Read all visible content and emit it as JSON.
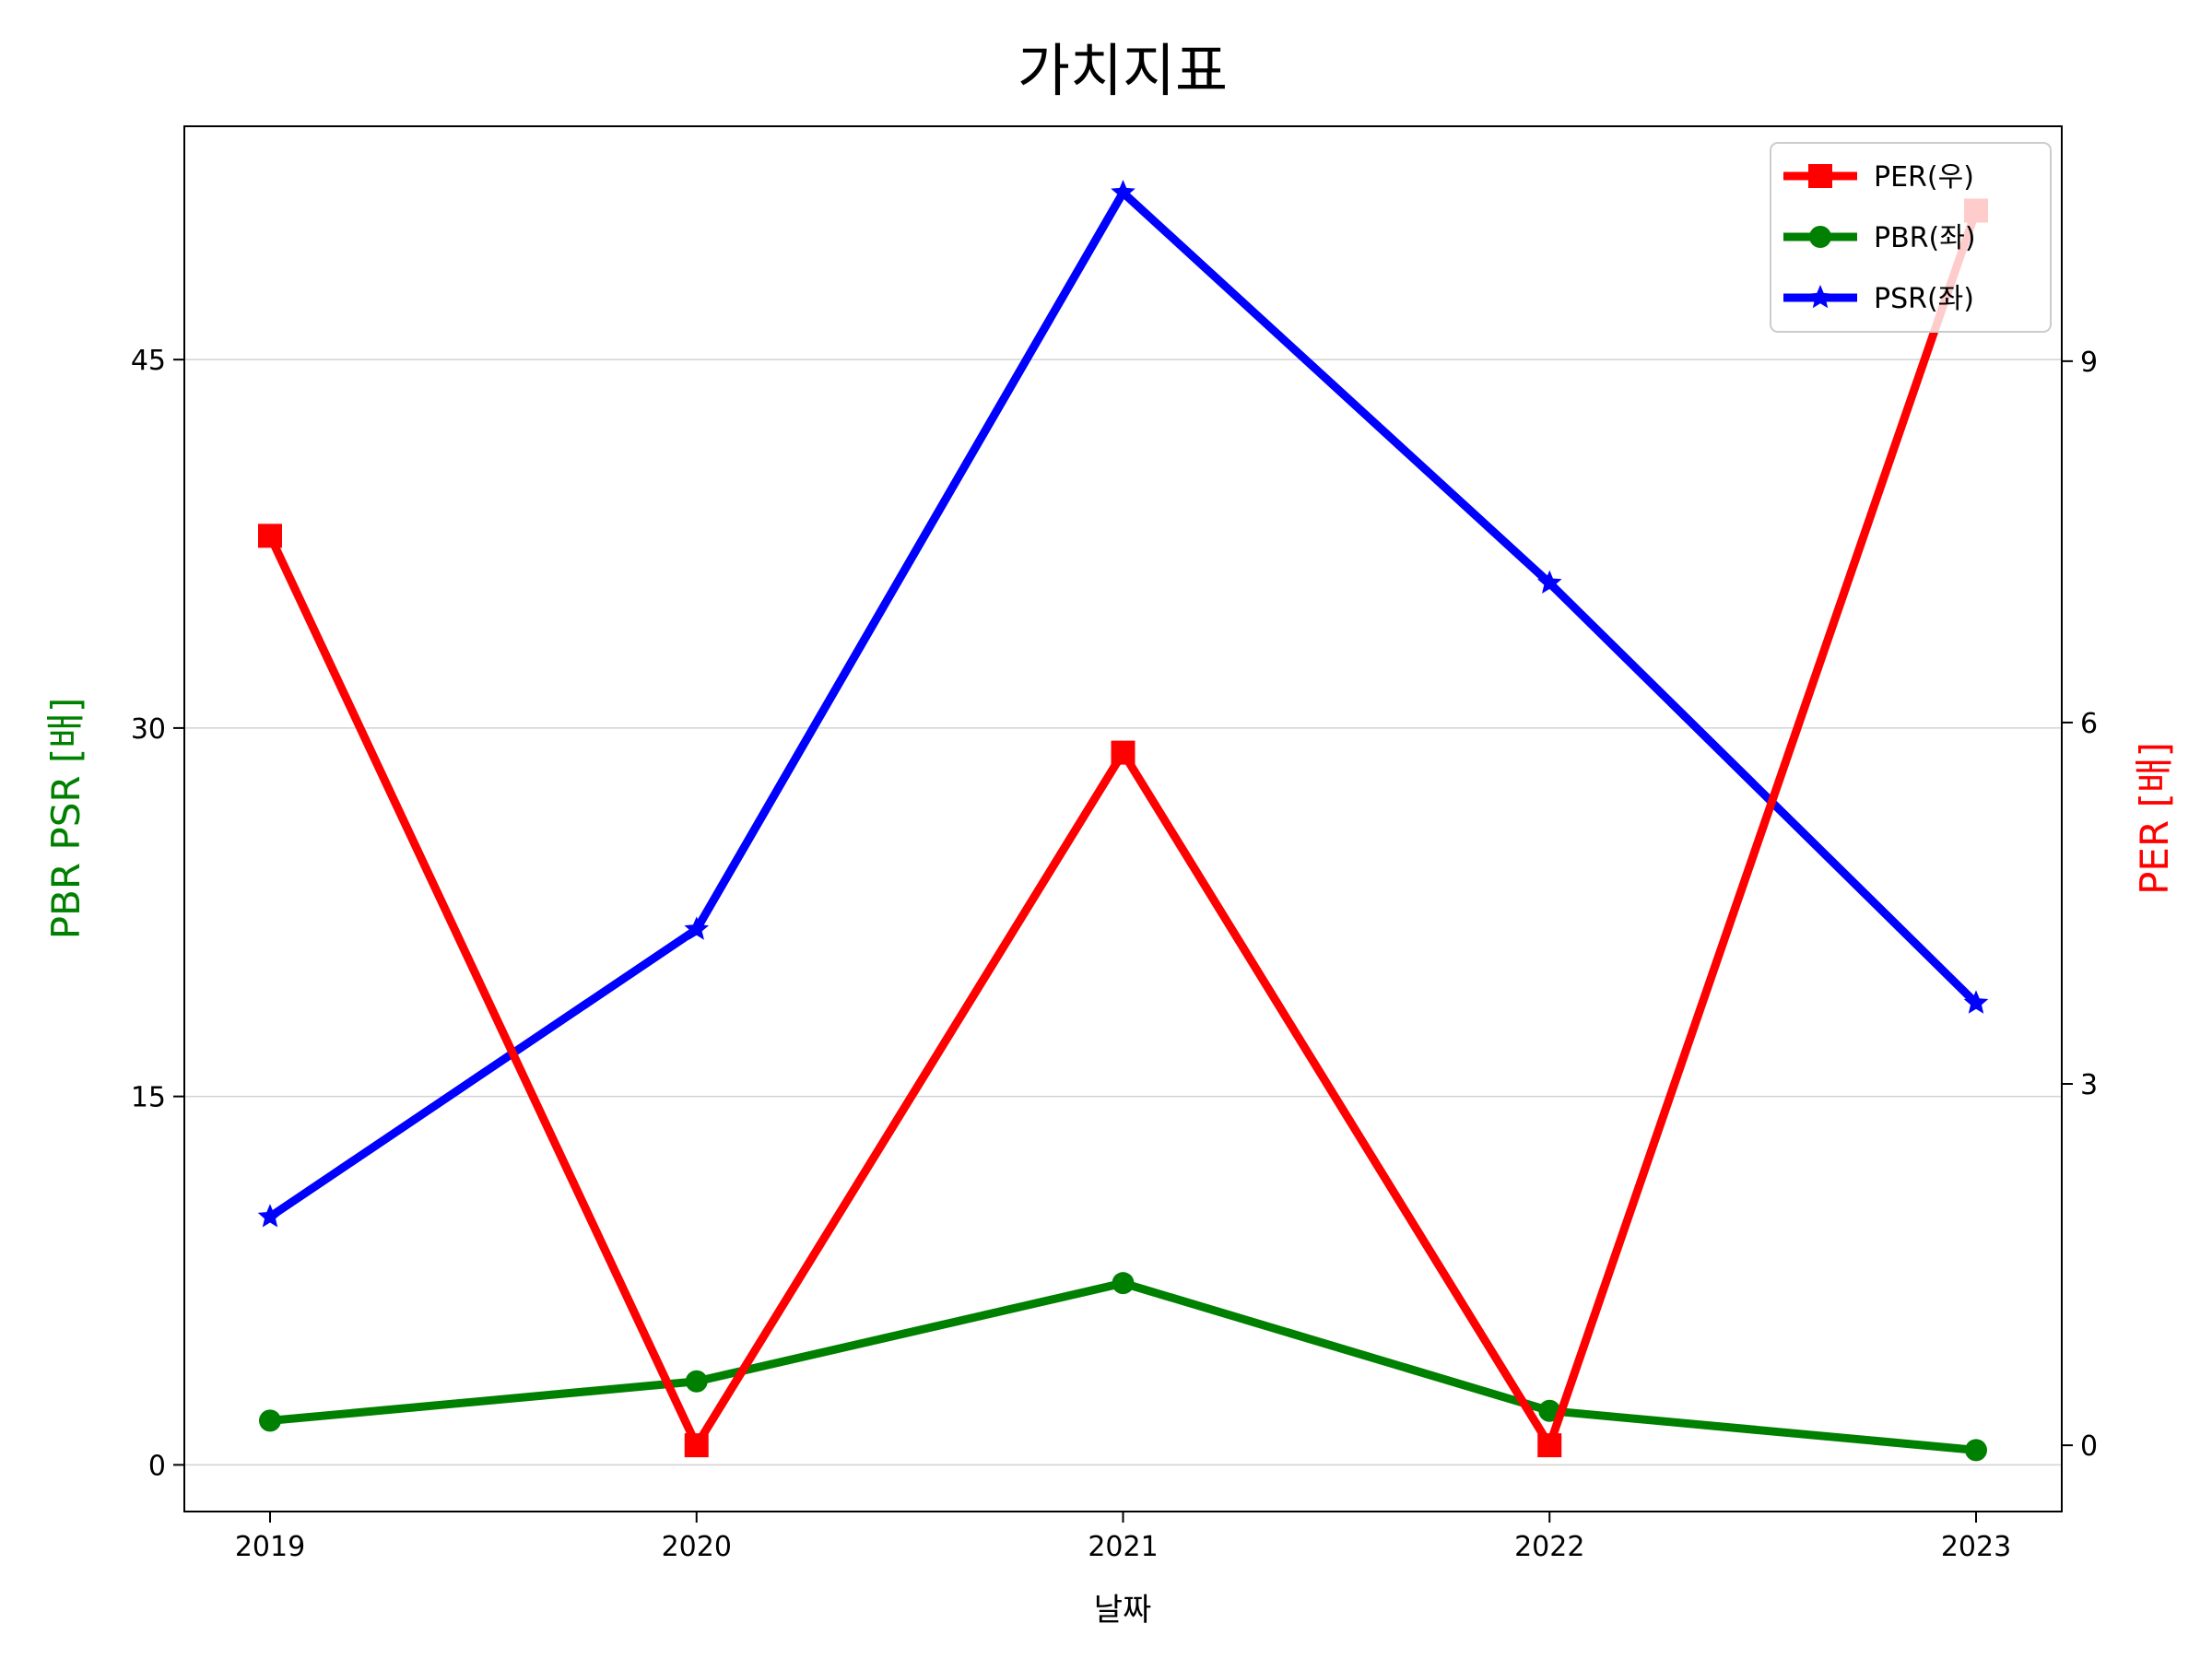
{
  "chart_data": {
    "type": "line",
    "title": "가치지표",
    "xlabel": "날짜",
    "ylabel_left": "PBR PSR [배]",
    "ylabel_right": "PER [배]",
    "categories": [
      "2019",
      "2020",
      "2021",
      "2022",
      "2023"
    ],
    "ylim_left": [
      -1.9,
      54.5
    ],
    "ylim_right": [
      -0.55,
      10.95
    ],
    "yticks_left": [
      "0",
      "15",
      "30",
      "45"
    ],
    "yticks_right": [
      "0",
      "3",
      "6",
      "9"
    ],
    "grid": "horizontal",
    "legend_position": "top-right",
    "series": [
      {
        "name": "PER(우)",
        "axis": "right",
        "marker": "square",
        "color": "#ff0000",
        "values": [
          7.55,
          0.0,
          5.75,
          0.0,
          10.25
        ]
      },
      {
        "name": "PBR(좌)",
        "axis": "left",
        "marker": "circle",
        "color": "#008000",
        "values": [
          1.8,
          3.4,
          7.4,
          2.2,
          0.6
        ]
      },
      {
        "name": "PSR(좌)",
        "axis": "left",
        "marker": "star",
        "color": "#0000ff",
        "values": [
          10.1,
          21.8,
          51.8,
          35.9,
          18.8
        ]
      }
    ]
  }
}
